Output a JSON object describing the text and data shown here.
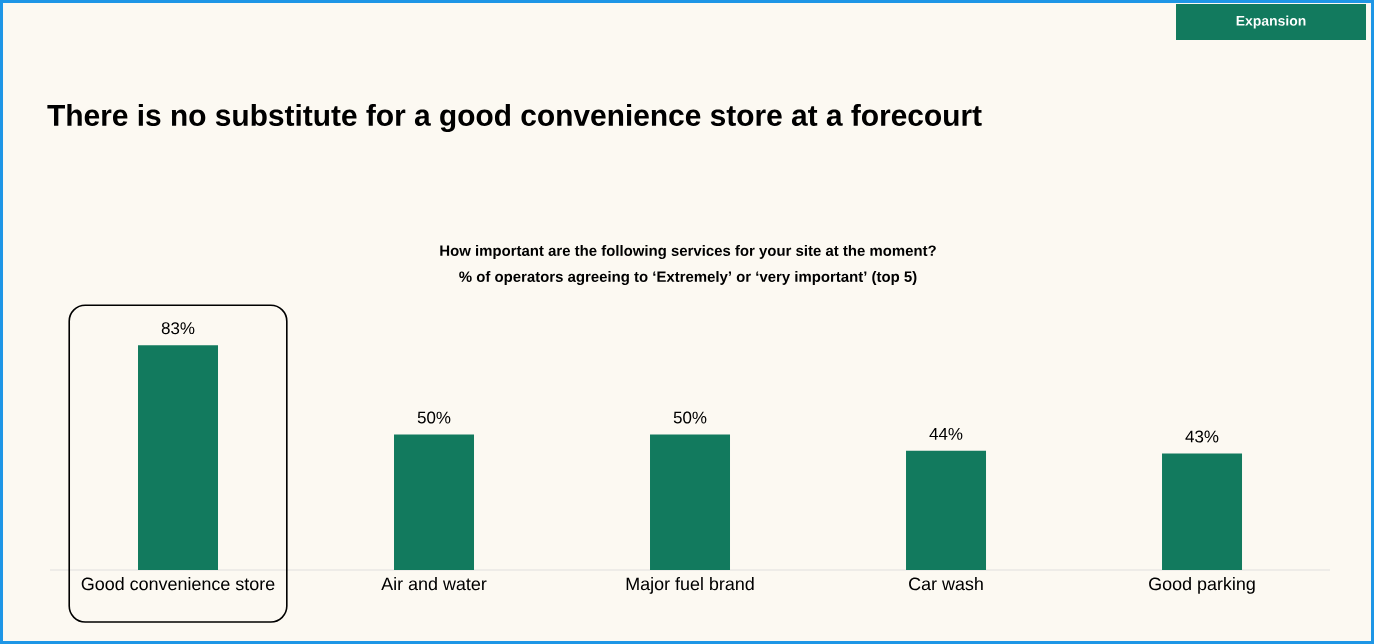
{
  "chart_data": {
    "type": "bar",
    "title": "There is no substitute for a good convenience store at a forecourt",
    "subtitle": "How important are the following services for your site at the moment?",
    "annotations": [
      "Expansion",
      "% of operators agreeing to ‘Extremely’ or ‘very important’ (top 5)"
    ],
    "categories": [
      "Good convenience store",
      "Air and water",
      "Major fuel brand",
      "Car wash",
      "Good parking"
    ],
    "values": [
      83,
      50,
      50,
      44,
      43
    ],
    "value_labels": [
      "83%",
      "50%",
      "50%",
      "44%",
      "43%"
    ],
    "color": "#127a5e"
  }
}
